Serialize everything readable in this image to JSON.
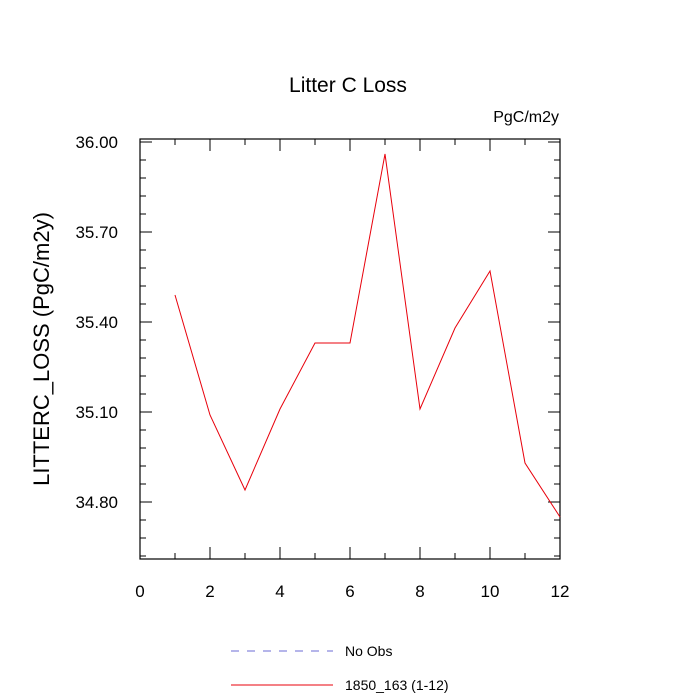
{
  "chart_data": {
    "type": "line",
    "title": "Litter C Loss",
    "units": "PgC/m2y",
    "xlabel": "",
    "ylabel": "LITTERC_LOSS  (PgC/m2y)",
    "xlim": [
      0,
      12
    ],
    "ylim": [
      34.61,
      36.01
    ],
    "x_ticks": [
      0,
      2,
      4,
      6,
      8,
      10,
      12
    ],
    "y_ticks": [
      34.8,
      35.1,
      35.4,
      35.7,
      36.0
    ],
    "y_tick_labels": [
      "34.80",
      "35.10",
      "35.40",
      "35.70",
      "36.00"
    ],
    "grid": false,
    "legend_position": "bottom-center",
    "series": [
      {
        "name": "No Obs",
        "color": "#6b6bd6",
        "style": "dashed",
        "x": [],
        "y": []
      },
      {
        "name": "1850_163 (1-12)",
        "color": "#e8000b",
        "style": "solid",
        "x": [
          1,
          2,
          3,
          4,
          5,
          6,
          7,
          8,
          9,
          10,
          11,
          12
        ],
        "y": [
          35.49,
          35.09,
          34.84,
          35.11,
          35.33,
          35.33,
          35.96,
          35.11,
          35.38,
          35.57,
          34.93,
          34.75
        ]
      }
    ]
  }
}
